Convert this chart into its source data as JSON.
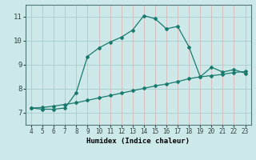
{
  "title": "",
  "xlabel": "Humidex (Indice chaleur)",
  "ylabel": "",
  "bg_color": "#cce8e8",
  "grid_color_minor": "#c0dede",
  "grid_color_major": "#b8d4d4",
  "line_color": "#1a7a6e",
  "xlim": [
    3.5,
    23.5
  ],
  "ylim": [
    6.5,
    11.5
  ],
  "xticks": [
    4,
    5,
    6,
    7,
    8,
    9,
    10,
    11,
    12,
    13,
    14,
    15,
    16,
    17,
    18,
    19,
    20,
    21,
    22,
    23
  ],
  "yticks": [
    7,
    8,
    9,
    10,
    11
  ],
  "curve1_x": [
    4,
    5,
    6,
    7,
    8,
    9,
    10,
    11,
    12,
    13,
    14,
    15,
    16,
    17,
    18,
    19,
    20,
    21,
    22,
    23
  ],
  "curve1_y": [
    7.2,
    7.15,
    7.15,
    7.2,
    7.85,
    9.35,
    9.7,
    9.95,
    10.15,
    10.45,
    11.05,
    10.92,
    10.5,
    10.6,
    9.75,
    8.5,
    8.9,
    8.7,
    8.8,
    8.65
  ],
  "curve2_x": [
    4,
    5,
    6,
    7,
    8,
    9,
    10,
    11,
    12,
    13,
    14,
    15,
    16,
    17,
    18,
    19,
    20,
    21,
    22,
    23
  ],
  "curve2_y": [
    7.2,
    7.22,
    7.28,
    7.35,
    7.42,
    7.52,
    7.62,
    7.72,
    7.82,
    7.92,
    8.02,
    8.12,
    8.2,
    8.3,
    8.42,
    8.5,
    8.55,
    8.6,
    8.68,
    8.72
  ]
}
